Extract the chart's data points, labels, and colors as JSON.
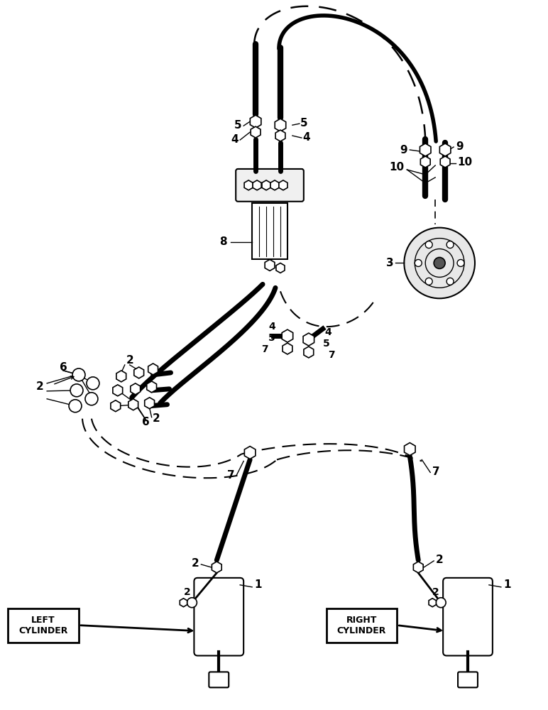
{
  "bg_color": "#ffffff",
  "line_color": "#000000",
  "labels": {
    "left_cylinder": "LEFT\nCYLINDER",
    "right_cylinder": "RIGHT\nCYLINDER"
  },
  "figsize": [
    7.72,
    10.0
  ],
  "dpi": 100
}
